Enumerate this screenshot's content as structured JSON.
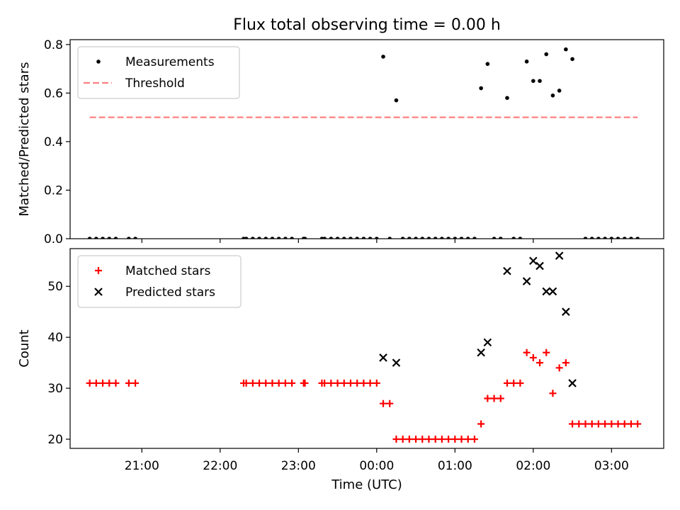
{
  "figure": {
    "title": "Flux total observing time = 0.00 h",
    "xlabel": "Time (UTC)",
    "xticks": [
      {
        "t": 21.0,
        "label": "21:00"
      },
      {
        "t": 22.0,
        "label": "22:00"
      },
      {
        "t": 23.0,
        "label": "23:00"
      },
      {
        "t": 24.0,
        "label": "00:00"
      },
      {
        "t": 25.0,
        "label": "01:00"
      },
      {
        "t": 26.0,
        "label": "02:00"
      },
      {
        "t": 27.0,
        "label": "03:00"
      }
    ]
  },
  "chart_data": [
    {
      "type": "scatter",
      "ylabel": "Matched/Predicted stars",
      "xlim": [
        "20:05",
        "27:40"
      ],
      "ylim": [
        0,
        0.82
      ],
      "yticks": [
        "0.0",
        "0.2",
        "0.4",
        "0.6",
        "0.8"
      ],
      "legend": {
        "placement": "top-left",
        "entries": [
          "Measurements",
          "Threshold"
        ]
      },
      "threshold": {
        "name": "Threshold",
        "value": 0.5,
        "x_range": [
          "20:20",
          "27:20"
        ],
        "color": "#ff8080",
        "style": "dashed"
      },
      "series": [
        {
          "name": "Measurements",
          "marker": "dot",
          "color": "#000000",
          "points": [
            [
              "20:20",
              0
            ],
            [
              "20:25",
              0
            ],
            [
              "20:30",
              0
            ],
            [
              "20:35",
              0
            ],
            [
              "20:40",
              0
            ],
            [
              "20:50",
              0
            ],
            [
              "20:55",
              0
            ],
            [
              "22:18",
              0
            ],
            [
              "22:20",
              0
            ],
            [
              "22:25",
              0
            ],
            [
              "22:30",
              0
            ],
            [
              "22:35",
              0
            ],
            [
              "22:40",
              0
            ],
            [
              "22:45",
              0
            ],
            [
              "22:50",
              0
            ],
            [
              "22:55",
              0
            ],
            [
              "23:04",
              0
            ],
            [
              "23:05",
              0
            ],
            [
              "23:18",
              0
            ],
            [
              "23:20",
              0
            ],
            [
              "23:25",
              0
            ],
            [
              "23:30",
              0
            ],
            [
              "23:35",
              0
            ],
            [
              "23:40",
              0
            ],
            [
              "23:45",
              0
            ],
            [
              "23:50",
              0
            ],
            [
              "23:55",
              0
            ],
            [
              "24:00",
              0
            ],
            [
              "24:05",
              0.75
            ],
            [
              "24:10",
              0
            ],
            [
              "24:15",
              0.57
            ],
            [
              "24:20",
              0
            ],
            [
              "24:25",
              0
            ],
            [
              "24:30",
              0
            ],
            [
              "24:35",
              0
            ],
            [
              "24:40",
              0
            ],
            [
              "24:45",
              0
            ],
            [
              "24:50",
              0
            ],
            [
              "24:55",
              0
            ],
            [
              "25:00",
              0
            ],
            [
              "25:05",
              0
            ],
            [
              "25:10",
              0
            ],
            [
              "25:15",
              0
            ],
            [
              "25:20",
              0.62
            ],
            [
              "25:25",
              0.72
            ],
            [
              "25:30",
              0
            ],
            [
              "25:35",
              0
            ],
            [
              "25:40",
              0.58
            ],
            [
              "25:45",
              0
            ],
            [
              "25:50",
              0
            ],
            [
              "25:55",
              0.73
            ],
            [
              "26:00",
              0.65
            ],
            [
              "26:05",
              0.65
            ],
            [
              "26:10",
              0.76
            ],
            [
              "26:15",
              0.59
            ],
            [
              "26:20",
              0.61
            ],
            [
              "26:25",
              0.78
            ],
            [
              "26:30",
              0.74
            ],
            [
              "26:40",
              0
            ],
            [
              "26:45",
              0
            ],
            [
              "26:50",
              0
            ],
            [
              "26:55",
              0
            ],
            [
              "27:00",
              0
            ],
            [
              "27:05",
              0
            ],
            [
              "27:10",
              0
            ],
            [
              "27:15",
              0
            ],
            [
              "27:20",
              0
            ]
          ]
        }
      ]
    },
    {
      "type": "scatter",
      "ylabel": "Count",
      "xlim": [
        "20:05",
        "27:40"
      ],
      "ylim": [
        18.2,
        57.4
      ],
      "yticks": [
        "20",
        "30",
        "40",
        "50"
      ],
      "legend": {
        "placement": "top-left",
        "entries": [
          "Matched stars",
          "Predicted stars"
        ]
      },
      "series": [
        {
          "name": "Matched stars",
          "marker": "plus",
          "color": "#ff0000",
          "points": [
            [
              "20:20",
              31
            ],
            [
              "20:25",
              31
            ],
            [
              "20:30",
              31
            ],
            [
              "20:35",
              31
            ],
            [
              "20:40",
              31
            ],
            [
              "20:50",
              31
            ],
            [
              "20:55",
              31
            ],
            [
              "22:18",
              31
            ],
            [
              "22:20",
              31
            ],
            [
              "22:25",
              31
            ],
            [
              "22:30",
              31
            ],
            [
              "22:35",
              31
            ],
            [
              "22:40",
              31
            ],
            [
              "22:45",
              31
            ],
            [
              "22:50",
              31
            ],
            [
              "22:55",
              31
            ],
            [
              "23:04",
              31
            ],
            [
              "23:05",
              31
            ],
            [
              "23:18",
              31
            ],
            [
              "23:20",
              31
            ],
            [
              "23:25",
              31
            ],
            [
              "23:30",
              31
            ],
            [
              "23:35",
              31
            ],
            [
              "23:40",
              31
            ],
            [
              "23:45",
              31
            ],
            [
              "23:50",
              31
            ],
            [
              "23:55",
              31
            ],
            [
              "24:00",
              31
            ],
            [
              "24:05",
              27
            ],
            [
              "24:10",
              27
            ],
            [
              "24:15",
              20
            ],
            [
              "24:20",
              20
            ],
            [
              "24:25",
              20
            ],
            [
              "24:30",
              20
            ],
            [
              "24:35",
              20
            ],
            [
              "24:40",
              20
            ],
            [
              "24:45",
              20
            ],
            [
              "24:50",
              20
            ],
            [
              "24:55",
              20
            ],
            [
              "25:00",
              20
            ],
            [
              "25:05",
              20
            ],
            [
              "25:10",
              20
            ],
            [
              "25:15",
              20
            ],
            [
              "25:20",
              23
            ],
            [
              "25:25",
              28
            ],
            [
              "25:30",
              28
            ],
            [
              "25:35",
              28
            ],
            [
              "25:40",
              31
            ],
            [
              "25:45",
              31
            ],
            [
              "25:50",
              31
            ],
            [
              "25:55",
              37
            ],
            [
              "26:00",
              36
            ],
            [
              "26:05",
              35
            ],
            [
              "26:10",
              37
            ],
            [
              "26:15",
              29
            ],
            [
              "26:20",
              34
            ],
            [
              "26:25",
              35
            ],
            [
              "26:30",
              23
            ],
            [
              "26:35",
              23
            ],
            [
              "26:40",
              23
            ],
            [
              "26:45",
              23
            ],
            [
              "26:50",
              23
            ],
            [
              "26:55",
              23
            ],
            [
              "27:00",
              23
            ],
            [
              "27:05",
              23
            ],
            [
              "27:10",
              23
            ],
            [
              "27:15",
              23
            ],
            [
              "27:20",
              23
            ]
          ]
        },
        {
          "name": "Predicted stars",
          "marker": "x",
          "color": "#000000",
          "points": [
            [
              "24:05",
              36
            ],
            [
              "24:15",
              35
            ],
            [
              "25:20",
              37
            ],
            [
              "25:25",
              39
            ],
            [
              "25:40",
              53
            ],
            [
              "25:55",
              51
            ],
            [
              "26:00",
              55
            ],
            [
              "26:05",
              54
            ],
            [
              "26:10",
              49
            ],
            [
              "26:15",
              49
            ],
            [
              "26:20",
              56
            ],
            [
              "26:25",
              45
            ],
            [
              "26:30",
              31
            ]
          ]
        }
      ]
    }
  ]
}
